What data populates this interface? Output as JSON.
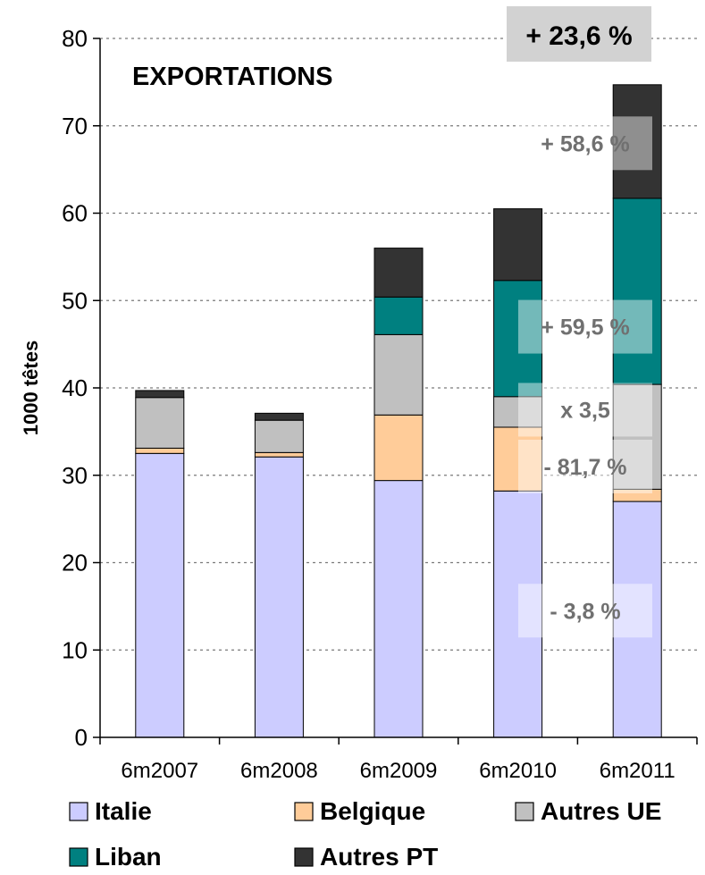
{
  "chart_data": {
    "type": "bar",
    "stacked": true,
    "title": "EXPORTATIONS",
    "ylabel": "1000 têtes",
    "xlabel": "",
    "ylim": [
      0,
      80
    ],
    "yticks": [
      0,
      10,
      20,
      30,
      40,
      50,
      60,
      70,
      80
    ],
    "grid": true,
    "categories": [
      "6m2007",
      "6m2008",
      "6m2009",
      "6m2010",
      "6m2011"
    ],
    "series": [
      {
        "name": "Italie",
        "color": "#ccccff",
        "values": [
          32.5,
          32.1,
          29.4,
          28.2,
          27.0
        ]
      },
      {
        "name": "Belgique",
        "color": "#ffcc99",
        "values": [
          0.6,
          0.5,
          7.5,
          7.3,
          1.4
        ]
      },
      {
        "name": "Autres UE",
        "color": "#c0c0c0",
        "values": [
          5.8,
          3.7,
          9.2,
          3.5,
          12.0
        ]
      },
      {
        "name": "Liban",
        "color": "#008080",
        "values": [
          0.0,
          0.0,
          4.3,
          13.3,
          21.3
        ]
      },
      {
        "name": "Autres PT",
        "color": "#333333",
        "values": [
          0.8,
          0.8,
          5.6,
          8.2,
          13.0
        ]
      }
    ],
    "legend_position": "bottom",
    "annotations": [
      {
        "text": "+ 58,6 %",
        "y": 68
      },
      {
        "text": "+ 59,5 %",
        "y": 47
      },
      {
        "text": "x 3,5",
        "y": 37.5
      },
      {
        "text": "- 81,7 %",
        "y": 31
      },
      {
        "text": "- 3,8 %",
        "y": 14.5
      }
    ],
    "total_change": "+ 23,6 %"
  }
}
